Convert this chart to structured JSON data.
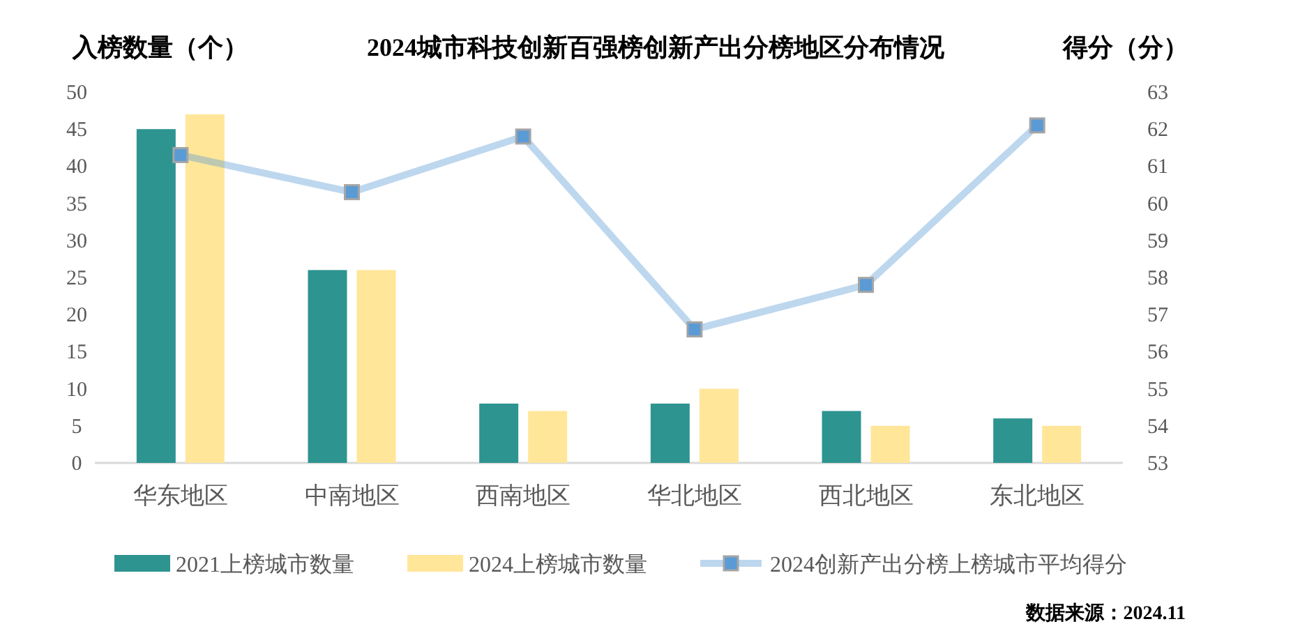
{
  "chart_data": {
    "type": "bar",
    "title": "2024城市科技创新百强榜创新产出分榜地区分布情况",
    "ylabel": "入榜数量（个）",
    "y2label": "得分（分）",
    "categories": [
      "华东地区",
      "中南地区",
      "西南地区",
      "华北地区",
      "西北地区",
      "东北地区"
    ],
    "series": [
      {
        "name": "2021上榜城市数量",
        "color": "#2e9490",
        "values": [
          45,
          26,
          8,
          8,
          7,
          6
        ]
      },
      {
        "name": "2024上榜城市数量",
        "color": "#ffe699",
        "values": [
          47,
          26,
          7,
          10,
          5,
          5
        ]
      },
      {
        "name": "2024创新产出分榜上榜城市平均得分",
        "type": "line",
        "axis": "y2",
        "marker": "square",
        "color": "#5b9bd5",
        "values": [
          61.3,
          60.3,
          61.8,
          56.6,
          57.8,
          62.1
        ]
      }
    ],
    "ylim": [
      0,
      50
    ],
    "yticks": [
      0,
      5,
      10,
      15,
      20,
      25,
      30,
      35,
      40,
      45,
      50
    ],
    "y2lim": [
      53,
      63
    ],
    "y2ticks": [
      53,
      54,
      55,
      56,
      57,
      58,
      59,
      60,
      61,
      62,
      63
    ],
    "legend": "bottom",
    "grid": false,
    "annotations": [
      "数据来源：2024.11"
    ]
  }
}
